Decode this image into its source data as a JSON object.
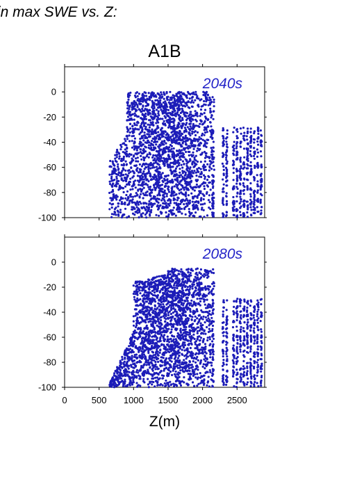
{
  "figure_title": "in max SWE vs. Z:",
  "colors": {
    "points": "#1c1cb8",
    "annotation": "#2424c8",
    "axis": "#000000"
  },
  "chart_data": [
    {
      "type": "scatter",
      "title": "A1B",
      "annotation": "2040s",
      "xlabel": "",
      "ylabel": "",
      "xlim": [
        0,
        2900
      ],
      "ylim": [
        -100,
        20
      ],
      "yticks": [
        0,
        -20,
        -40,
        -60,
        -80,
        -100
      ],
      "ytick_labels": [
        "0",
        "-20",
        "-40",
        "-60",
        "-80",
        "-100"
      ],
      "xticks": [
        0,
        500,
        1000,
        1500,
        2000,
        2500
      ],
      "xtick_labels": [],
      "x_columns": [
        2150,
        2300,
        2350,
        2450,
        2500,
        2550,
        2600,
        2650,
        2700,
        2750,
        2800,
        2850
      ],
      "grid": false
    },
    {
      "type": "scatter",
      "title": "",
      "annotation": "2080s",
      "xlabel": "Z(m)",
      "ylabel": "",
      "xlim": [
        0,
        2900
      ],
      "ylim": [
        -100,
        20
      ],
      "yticks": [
        0,
        -20,
        -40,
        -60,
        -80,
        -100
      ],
      "ytick_labels": [
        "0",
        "-20",
        "-40",
        "-60",
        "-80",
        "-100"
      ],
      "xticks": [
        0,
        500,
        1000,
        1500,
        2000,
        2500
      ],
      "xtick_labels": [
        "0",
        "500",
        "1000",
        "1500",
        "2000",
        "2500"
      ],
      "x_columns": [
        2150,
        2300,
        2350,
        2450,
        2500,
        2550,
        2600,
        2650,
        2700,
        2750,
        2800,
        2850
      ],
      "grid": false
    }
  ]
}
